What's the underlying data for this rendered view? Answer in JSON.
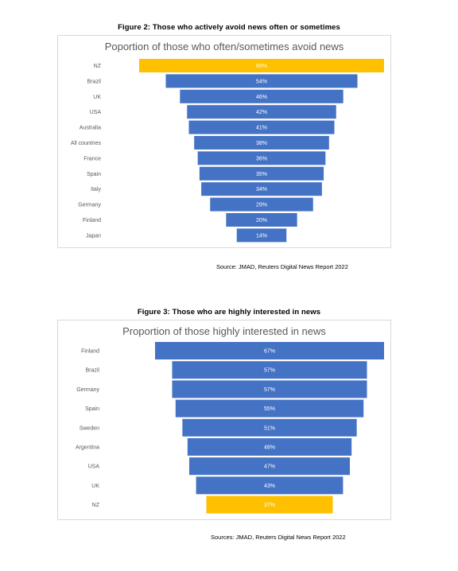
{
  "figure2": {
    "caption": "Figure 2: Those who actively avoid news often or sometimes",
    "source": "Source: JMAD, Reuters Digital News Report 2022"
  },
  "figure3": {
    "caption": "Figure 3: Those who are highly interested in news",
    "source": "Sources: JMAD, Reuters Digital News Report 2022"
  },
  "colors": {
    "bar": "#4472c4",
    "highlight": "#ffc000",
    "label_text": "#ffffff",
    "category_text": "#595959"
  },
  "chart_data": [
    {
      "type": "bar",
      "orientation": "horizontal-centered-funnel",
      "title": "Poportion of those who often/sometimes avoid news",
      "categories": [
        "NZ",
        "Brazil",
        "UK",
        "USA",
        "Australia",
        "All countries",
        "France",
        "Spain",
        "Italy",
        "Germany",
        "Finland",
        "Japan"
      ],
      "values": [
        69,
        54,
        46,
        42,
        41,
        38,
        36,
        35,
        34,
        29,
        20,
        14
      ],
      "data_labels": [
        "69%",
        "54%",
        "46%",
        "42%",
        "41%",
        "38%",
        "36%",
        "35%",
        "34%",
        "29%",
        "20%",
        "14%"
      ],
      "highlight": [
        "NZ"
      ],
      "unit": "%"
    },
    {
      "type": "bar",
      "orientation": "horizontal-centered-funnel",
      "title": "Proportion of those highly interested in news",
      "categories": [
        "Finland",
        "Brazil",
        "Germany",
        "Spain",
        "Sweden",
        "Argentina",
        "USA",
        "UK",
        "NZ"
      ],
      "values": [
        67,
        57,
        57,
        55,
        51,
        48,
        47,
        43,
        37
      ],
      "data_labels": [
        "67%",
        "57%",
        "57%",
        "55%",
        "51%",
        "48%",
        "47%",
        "43%",
        "37%"
      ],
      "highlight": [
        "NZ"
      ],
      "unit": "%"
    }
  ]
}
